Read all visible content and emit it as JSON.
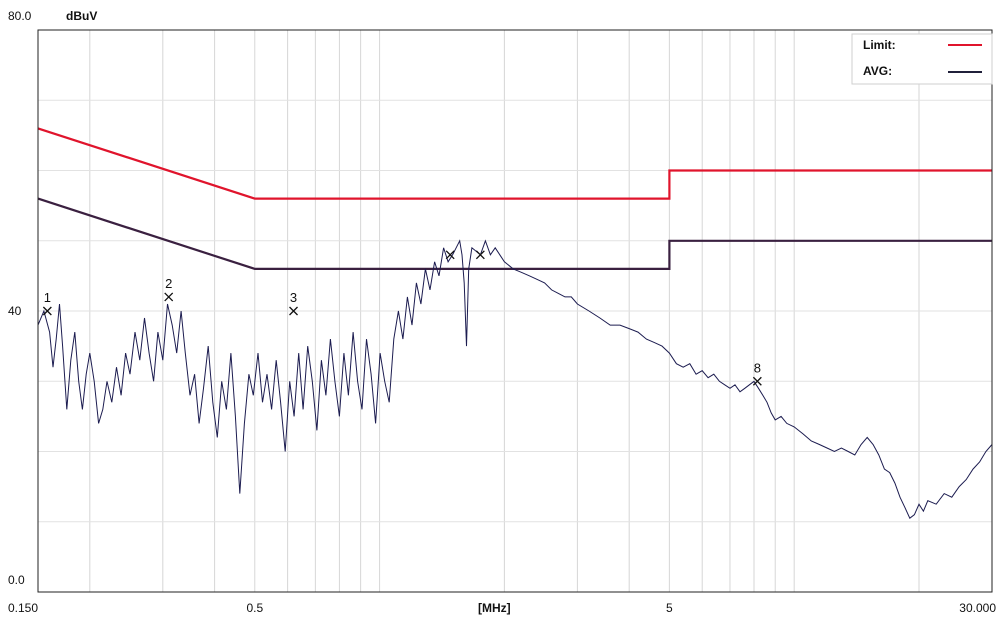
{
  "chart_data": {
    "type": "line",
    "x_scale": "log",
    "xlim": [
      0.15,
      30
    ],
    "ylim": [
      0,
      80
    ],
    "y_top_label": "80.0",
    "y_unit_label": "dBuV",
    "y_ticks": [
      {
        "value": 40,
        "label": "40"
      },
      {
        "value": 0,
        "label": "0.0"
      }
    ],
    "x_ticks": [
      {
        "value": 0.15,
        "label": "0.150"
      },
      {
        "value": 0.5,
        "label": "0.5"
      },
      {
        "value": 5,
        "label": "5"
      },
      {
        "value": 30,
        "label": "30.000"
      }
    ],
    "x_unit_label": "[MHz]",
    "grid": true,
    "legend_position": "top-right",
    "legend": [
      {
        "label": "Limit:",
        "color": "#e0142c"
      },
      {
        "label": "AVG:",
        "color": "#20203a"
      }
    ],
    "limit_lines": [
      {
        "label": "Limit",
        "color": "#e0142c",
        "points": [
          [
            0.15,
            66
          ],
          [
            0.5,
            56
          ],
          [
            5,
            56
          ],
          [
            5,
            60
          ],
          [
            30,
            60
          ]
        ]
      },
      {
        "label": "AVG",
        "color": "#3a2040",
        "points": [
          [
            0.15,
            56
          ],
          [
            0.5,
            46
          ],
          [
            5,
            46
          ],
          [
            5,
            50
          ],
          [
            30,
            50
          ]
        ]
      }
    ],
    "series": [
      {
        "color": "#1c1c50",
        "points": [
          [
            0.15,
            38
          ],
          [
            0.155,
            40
          ],
          [
            0.16,
            37
          ],
          [
            0.163,
            32
          ],
          [
            0.166,
            36
          ],
          [
            0.169,
            41
          ],
          [
            0.172,
            35
          ],
          [
            0.176,
            26
          ],
          [
            0.18,
            33
          ],
          [
            0.184,
            37
          ],
          [
            0.188,
            30
          ],
          [
            0.192,
            26
          ],
          [
            0.196,
            31
          ],
          [
            0.2,
            34
          ],
          [
            0.205,
            30
          ],
          [
            0.21,
            24
          ],
          [
            0.215,
            26
          ],
          [
            0.22,
            30
          ],
          [
            0.226,
            27
          ],
          [
            0.232,
            32
          ],
          [
            0.238,
            28
          ],
          [
            0.244,
            34
          ],
          [
            0.25,
            31
          ],
          [
            0.257,
            37
          ],
          [
            0.264,
            33
          ],
          [
            0.271,
            39
          ],
          [
            0.278,
            34
          ],
          [
            0.285,
            30
          ],
          [
            0.292,
            37
          ],
          [
            0.3,
            33
          ],
          [
            0.308,
            41
          ],
          [
            0.316,
            38
          ],
          [
            0.324,
            34
          ],
          [
            0.332,
            40
          ],
          [
            0.34,
            34
          ],
          [
            0.349,
            28
          ],
          [
            0.358,
            31
          ],
          [
            0.367,
            24
          ],
          [
            0.376,
            29
          ],
          [
            0.386,
            35
          ],
          [
            0.396,
            27
          ],
          [
            0.406,
            22
          ],
          [
            0.416,
            30
          ],
          [
            0.427,
            26
          ],
          [
            0.438,
            34
          ],
          [
            0.449,
            25
          ],
          [
            0.46,
            14
          ],
          [
            0.472,
            24
          ],
          [
            0.484,
            31
          ],
          [
            0.496,
            28
          ],
          [
            0.509,
            34
          ],
          [
            0.522,
            27
          ],
          [
            0.535,
            31
          ],
          [
            0.549,
            26
          ],
          [
            0.563,
            33
          ],
          [
            0.577,
            27
          ],
          [
            0.592,
            20
          ],
          [
            0.607,
            30
          ],
          [
            0.622,
            25
          ],
          [
            0.638,
            34
          ],
          [
            0.654,
            26
          ],
          [
            0.671,
            35
          ],
          [
            0.688,
            30
          ],
          [
            0.706,
            23
          ],
          [
            0.724,
            33
          ],
          [
            0.742,
            28
          ],
          [
            0.761,
            36
          ],
          [
            0.78,
            30
          ],
          [
            0.8,
            25
          ],
          [
            0.82,
            34
          ],
          [
            0.841,
            28
          ],
          [
            0.863,
            37
          ],
          [
            0.885,
            30
          ],
          [
            0.907,
            26
          ],
          [
            0.93,
            36
          ],
          [
            0.954,
            31
          ],
          [
            0.978,
            24
          ],
          [
            1.003,
            34
          ],
          [
            1.029,
            30
          ],
          [
            1.055,
            27
          ],
          [
            1.082,
            36
          ],
          [
            1.11,
            40
          ],
          [
            1.138,
            36
          ],
          [
            1.167,
            42
          ],
          [
            1.197,
            38
          ],
          [
            1.227,
            44
          ],
          [
            1.258,
            41
          ],
          [
            1.29,
            46
          ],
          [
            1.323,
            43
          ],
          [
            1.357,
            47
          ],
          [
            1.391,
            45
          ],
          [
            1.427,
            49
          ],
          [
            1.463,
            47
          ],
          [
            1.5,
            48
          ],
          [
            1.56,
            50
          ],
          [
            1.58,
            48
          ],
          [
            1.6,
            44
          ],
          [
            1.62,
            35
          ],
          [
            1.64,
            46
          ],
          [
            1.67,
            49
          ],
          [
            1.75,
            48
          ],
          [
            1.8,
            50
          ],
          [
            1.85,
            48
          ],
          [
            1.9,
            49
          ],
          [
            1.95,
            48
          ],
          [
            2.0,
            47
          ],
          [
            2.1,
            46
          ],
          [
            2.2,
            45.5
          ],
          [
            2.3,
            45
          ],
          [
            2.4,
            44.5
          ],
          [
            2.5,
            44
          ],
          [
            2.6,
            43
          ],
          [
            2.7,
            42.5
          ],
          [
            2.8,
            42
          ],
          [
            2.9,
            42
          ],
          [
            3.0,
            41
          ],
          [
            3.2,
            40
          ],
          [
            3.4,
            39
          ],
          [
            3.6,
            38
          ],
          [
            3.8,
            38
          ],
          [
            4.0,
            37.5
          ],
          [
            4.2,
            37
          ],
          [
            4.4,
            36
          ],
          [
            4.6,
            35.5
          ],
          [
            4.8,
            35
          ],
          [
            5.0,
            34
          ],
          [
            5.2,
            32.5
          ],
          [
            5.4,
            32
          ],
          [
            5.6,
            32.5
          ],
          [
            5.8,
            31
          ],
          [
            6.0,
            31.5
          ],
          [
            6.2,
            30.5
          ],
          [
            6.4,
            31
          ],
          [
            6.6,
            30
          ],
          [
            6.8,
            29.5
          ],
          [
            7.0,
            29
          ],
          [
            7.2,
            29.5
          ],
          [
            7.4,
            28.5
          ],
          [
            7.6,
            29
          ],
          [
            7.8,
            29.5
          ],
          [
            8.0,
            30
          ],
          [
            8.2,
            29
          ],
          [
            8.4,
            28
          ],
          [
            8.6,
            27
          ],
          [
            8.8,
            25.5
          ],
          [
            9.0,
            24.5
          ],
          [
            9.3,
            25
          ],
          [
            9.6,
            24
          ],
          [
            10.0,
            23.5
          ],
          [
            10.5,
            22.5
          ],
          [
            11.0,
            21.5
          ],
          [
            11.5,
            21
          ],
          [
            12.0,
            20.5
          ],
          [
            12.5,
            20
          ],
          [
            13.0,
            20.5
          ],
          [
            13.5,
            20
          ],
          [
            14.0,
            19.5
          ],
          [
            14.5,
            21
          ],
          [
            15.0,
            22
          ],
          [
            15.5,
            21
          ],
          [
            16.0,
            19.5
          ],
          [
            16.5,
            17.5
          ],
          [
            17.0,
            17
          ],
          [
            17.5,
            15.5
          ],
          [
            18.0,
            13.5
          ],
          [
            18.5,
            12
          ],
          [
            19.0,
            10.5
          ],
          [
            19.5,
            11
          ],
          [
            20.0,
            12.5
          ],
          [
            20.5,
            11.5
          ],
          [
            21.0,
            13
          ],
          [
            22.0,
            12.5
          ],
          [
            23.0,
            14
          ],
          [
            24.0,
            13.5
          ],
          [
            25.0,
            15
          ],
          [
            26.0,
            16
          ],
          [
            27.0,
            17.5
          ],
          [
            28.0,
            18.5
          ],
          [
            29.0,
            20
          ],
          [
            30.0,
            21
          ]
        ]
      }
    ],
    "markers": [
      {
        "label": "1",
        "x": 0.158,
        "y": 40
      },
      {
        "label": "2",
        "x": 0.31,
        "y": 42
      },
      {
        "label": "3",
        "x": 0.62,
        "y": 40
      },
      {
        "label": "",
        "x": 1.48,
        "y": 48
      },
      {
        "label": "",
        "x": 1.75,
        "y": 48
      },
      {
        "label": "8",
        "x": 8.15,
        "y": 30
      }
    ]
  }
}
